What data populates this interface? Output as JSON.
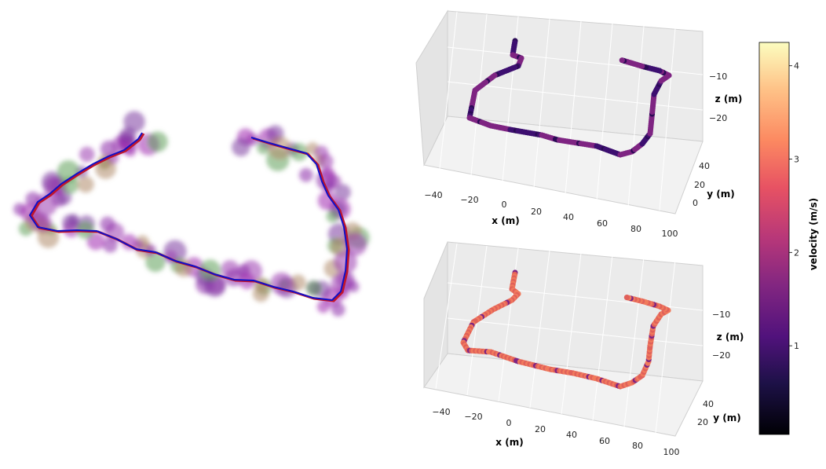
{
  "chart_data": [
    {
      "type": "scatter",
      "panel": "point-cloud-map",
      "description_visible": false
    },
    {
      "type": "scatter",
      "panel": "top-3d-trajectory",
      "x_ticks": [
        "−40",
        "−20",
        "0",
        "20",
        "40",
        "60",
        "80",
        "100"
      ],
      "y_ticks": [
        "0",
        "20",
        "40"
      ],
      "z_ticks": [
        "−10",
        "−20"
      ],
      "xlabel": "x (m)",
      "ylabel": "y (m)",
      "zlabel": "z (m)",
      "colors": {
        "low": "#3d0f70",
        "mid": "#7e2482"
      }
    },
    {
      "type": "scatter",
      "panel": "bottom-3d-trajectory",
      "x_ticks": [
        "−40",
        "−20",
        "0",
        "20",
        "40",
        "60",
        "80",
        "100"
      ],
      "y_ticks": [
        "20",
        "40"
      ],
      "z_ticks": [
        "−10",
        "−20"
      ],
      "xlabel": "x (m)",
      "ylabel": "y (m)",
      "zlabel": "z (m)",
      "colors": {
        "low": "#7e2482",
        "high": "#f07a5c"
      }
    },
    {
      "type": "colorbar",
      "colormap": "magma",
      "ticks": [
        "1",
        "2",
        "3",
        "4"
      ],
      "tick_values": [
        1,
        2,
        3,
        4
      ],
      "range": [
        0.05,
        4.25
      ],
      "label": "velocity (m/s)"
    }
  ]
}
